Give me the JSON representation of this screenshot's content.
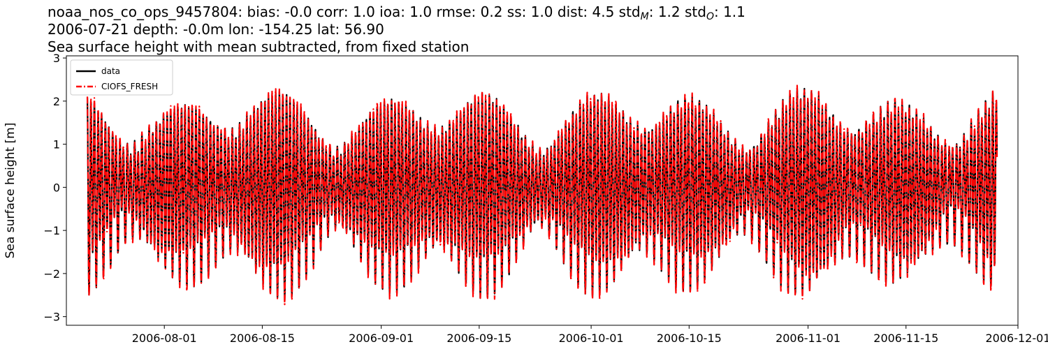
{
  "chart_data": {
    "type": "line",
    "title_lines": [
      {
        "parts": [
          {
            "text": "noaa_nos_co_ops_9457804: bias: -0.0  corr: 1.0  ioa: 1.0  rmse: 0.2  ss: 1.0  dist: 4.5  std"
          },
          {
            "text": "M",
            "sub": true
          },
          {
            "text": ": 1.2  std"
          },
          {
            "text": "O",
            "sub": true
          },
          {
            "text": ": 1.1"
          }
        ]
      },
      {
        "parts": [
          {
            "text": "2006-07-21 depth: -0.0m lon: -154.25 lat: 56.90"
          }
        ]
      },
      {
        "parts": [
          {
            "text": "Sea surface height with mean subtracted, from fixed station"
          }
        ]
      }
    ],
    "ylabel": "Sea surface height [m]",
    "xlabel": "",
    "x_range": [
      "2006-07-18",
      "2006-12-01"
    ],
    "x_ticks": [
      "2006-08-01",
      "2006-08-15",
      "2006-09-01",
      "2006-09-15",
      "2006-10-01",
      "2006-10-15",
      "2006-11-01",
      "2006-11-15",
      "2006-12-01"
    ],
    "ylim": [
      -3.2,
      3.05
    ],
    "y_ticks": [
      -3,
      -2,
      -1,
      0,
      1,
      2,
      3
    ],
    "y_tick_labels": [
      "−3",
      "−2",
      "−1",
      "0",
      "1",
      "2",
      "3"
    ],
    "grid": false,
    "legend_position": "upper-left",
    "series": [
      {
        "name": "data",
        "color": "#000000",
        "style": "solid",
        "time_start": "2006-07-21",
        "time_end": "2006-11-28",
        "approx_peak_range_m": [
          -2.9,
          2.8
        ]
      },
      {
        "name": "CIOFS_FRESH",
        "color": "#ff0000",
        "style": "dashdot",
        "time_start": "2006-07-21",
        "time_end": "2006-11-28",
        "approx_peak_range_m": [
          -2.8,
          2.6
        ]
      }
    ]
  }
}
